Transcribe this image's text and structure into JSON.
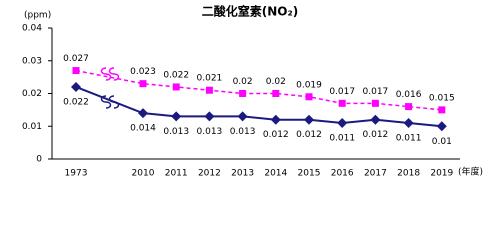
{
  "chart_data": {
    "type": "line",
    "title": "二酸化窒素(NO₂)",
    "y_unit": "(ppm)",
    "x_unit": "(年度)",
    "categories": [
      "1973",
      "2010",
      "2011",
      "2012",
      "2013",
      "2014",
      "2015",
      "2016",
      "2017",
      "2018",
      "2019"
    ],
    "series": [
      {
        "color": "#ff00ff",
        "dashed": true,
        "marker": "square",
        "label_position": "above",
        "values": [
          0.027,
          0.023,
          0.022,
          0.021,
          0.02,
          0.02,
          0.019,
          0.017,
          0.017,
          0.016,
          0.015
        ]
      },
      {
        "color": "#1a1a80",
        "dashed": false,
        "marker": "diamond",
        "label_position": "below",
        "values": [
          0.022,
          0.014,
          0.013,
          0.013,
          0.013,
          0.012,
          0.012,
          0.011,
          0.012,
          0.011,
          0.01
        ]
      }
    ],
    "ylim": [
      0,
      0.04
    ],
    "yticks": [
      0,
      0.01,
      0.02,
      0.03,
      0.04
    ],
    "grid": false
  }
}
